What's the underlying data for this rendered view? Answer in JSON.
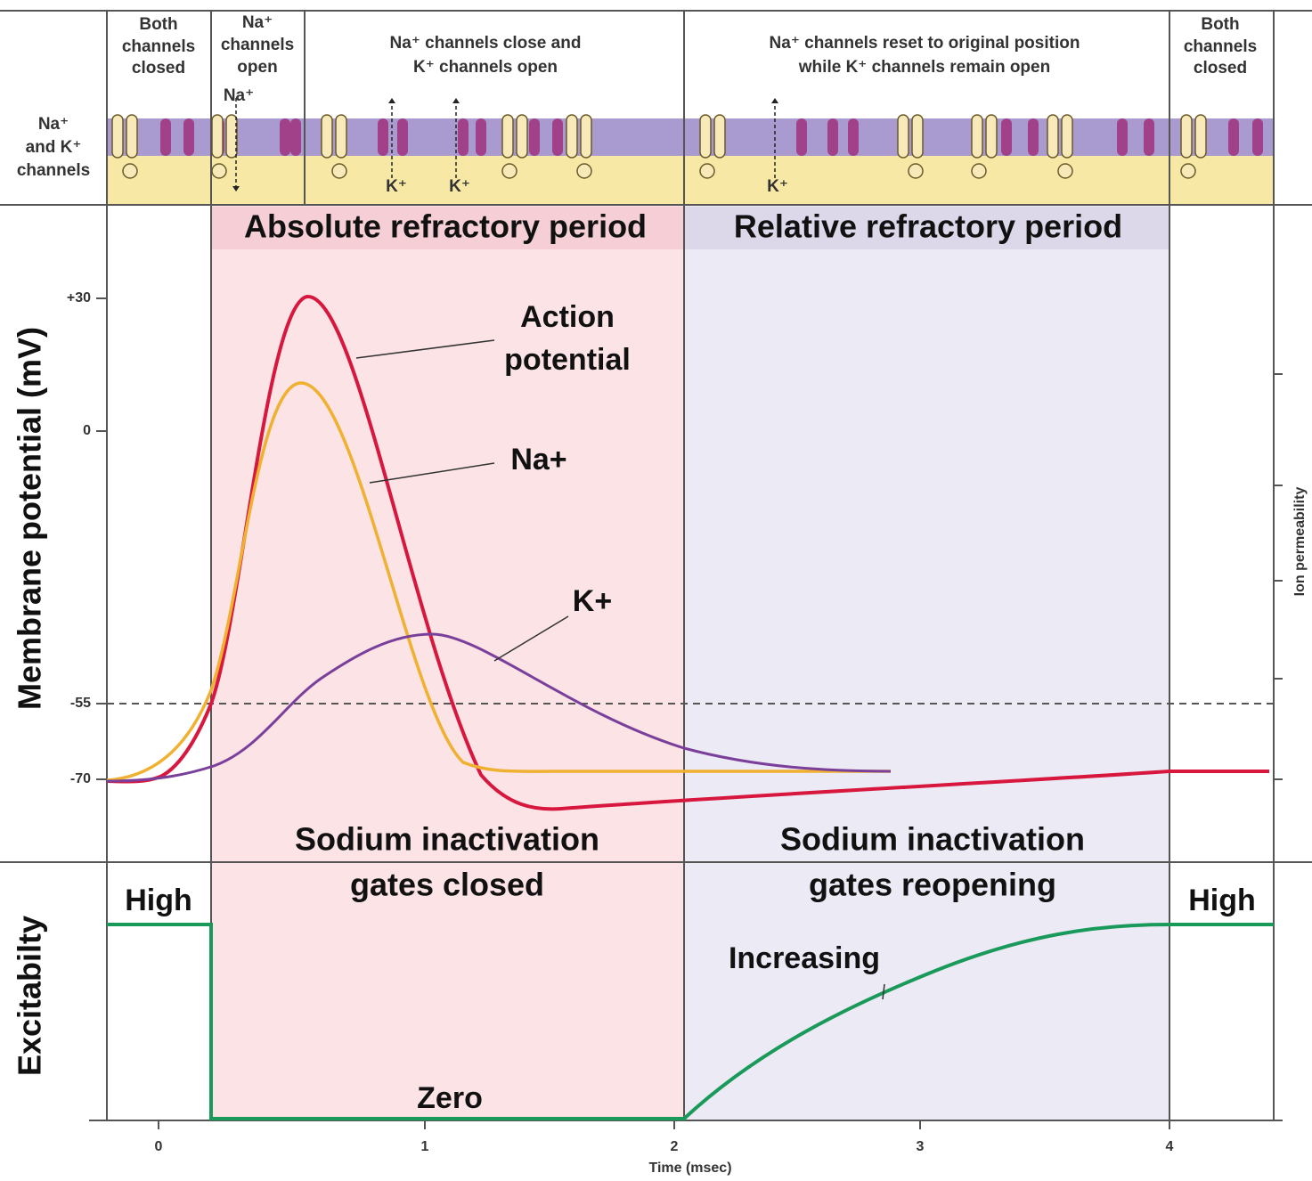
{
  "header": {
    "phases": [
      {
        "lines": [
          "Both",
          "channels",
          "closed"
        ]
      },
      {
        "lines": [
          "Na⁺",
          "channels",
          "open"
        ]
      },
      {
        "lines": [
          "Na⁺ channels close and",
          "K⁺ channels open"
        ]
      },
      {
        "lines": [
          "Na⁺ channels reset to original position",
          "while K⁺ channels remain open"
        ]
      },
      {
        "lines": [
          "Both",
          "channels",
          "closed"
        ]
      }
    ],
    "channel_label": [
      "Na⁺",
      "and K⁺",
      "channels"
    ],
    "ion_labels": [
      "Na⁺",
      "K⁺",
      "K⁺",
      "K⁺"
    ]
  },
  "periods": [
    "Absolute refractory period",
    "Relative refractory period"
  ],
  "y_axis": {
    "label": "Membrane potential (mV)",
    "ticks": [
      "+30",
      "0",
      "-55",
      "-70"
    ]
  },
  "right_axis_label": "Ion permeability",
  "curve_labels": {
    "action_potential": [
      "Action",
      "potential"
    ],
    "sodium": "Na+",
    "potassium": "K+"
  },
  "gates": [
    [
      "Sodium inactivation",
      "gates closed"
    ],
    [
      "Sodium inactivation",
      "gates reopening"
    ]
  ],
  "excitability": {
    "label": "Excitabilty",
    "high_left": "High",
    "high_right": "High",
    "zero": "Zero",
    "increasing": "Increasing"
  },
  "x_axis": {
    "label": "Time (msec)",
    "ticks": [
      "0",
      "1",
      "2",
      "3",
      "4"
    ]
  }
}
